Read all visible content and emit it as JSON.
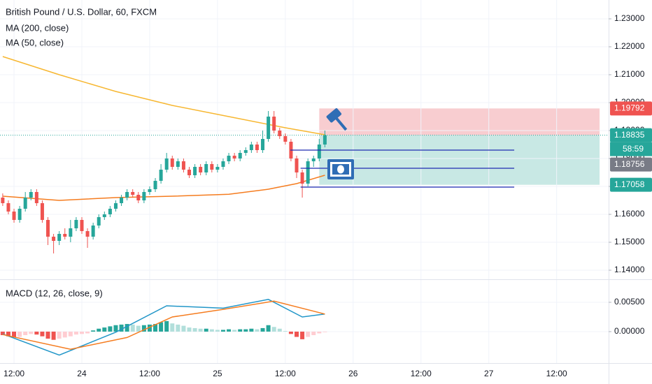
{
  "chart_data": [
    {
      "type": "candlestick",
      "title": "British Pound / U.S. Dollar, 60, FXCM",
      "xlim": [
        -2.48,
        105.2
      ],
      "xticks": [
        {
          "value": 0,
          "label": "12:00"
        },
        {
          "value": 12,
          "label": "24"
        },
        {
          "value": 24,
          "label": "12:00"
        },
        {
          "value": 36,
          "label": "25"
        },
        {
          "value": 48,
          "label": "12:00"
        },
        {
          "value": 60,
          "label": "26"
        },
        {
          "value": 72,
          "label": "12:00"
        },
        {
          "value": 84,
          "label": "27"
        },
        {
          "value": 96,
          "label": "12:00"
        }
      ],
      "ylim": [
        1.13675,
        1.23675
      ],
      "yticks": [
        {
          "value": 1.14,
          "label": "1.14000"
        },
        {
          "value": 1.15,
          "label": "1.15000"
        },
        {
          "value": 1.16,
          "label": "1.16000"
        },
        {
          "value": 1.17,
          "label": "1.17000"
        },
        {
          "value": 1.18,
          "label": "1.18000"
        },
        {
          "value": 1.19,
          "label": "1.19000"
        },
        {
          "value": 1.2,
          "label": "1.20000"
        },
        {
          "value": 1.21,
          "label": "1.21000"
        },
        {
          "value": 1.22,
          "label": "1.22000"
        },
        {
          "value": 1.23,
          "label": "1.23000"
        }
      ],
      "up_color": "#26a69a",
      "down_color": "#ef5350",
      "candles": {
        "x": [
          -2,
          -1,
          0,
          1,
          2,
          3,
          4,
          5,
          6,
          7,
          8,
          9,
          10,
          11,
          12,
          13,
          14,
          15,
          16,
          17,
          18,
          19,
          20,
          21,
          22,
          23,
          24,
          25,
          26,
          27,
          28,
          29,
          30,
          31,
          32,
          33,
          34,
          35,
          36,
          37,
          38,
          39,
          40,
          41,
          42,
          43,
          44,
          45,
          46,
          47,
          48,
          49,
          50,
          51,
          52,
          53,
          54,
          55
        ],
        "ohlc": [
          [
            1.166,
            1.1675,
            1.163,
            1.164
          ],
          [
            1.164,
            1.165,
            1.16,
            1.161
          ],
          [
            1.161,
            1.162,
            1.157,
            1.158
          ],
          [
            1.158,
            1.163,
            1.157,
            1.162
          ],
          [
            1.162,
            1.168,
            1.161,
            1.166
          ],
          [
            1.166,
            1.169,
            1.165,
            1.168
          ],
          [
            1.168,
            1.169,
            1.163,
            1.164
          ],
          [
            1.164,
            1.165,
            1.157,
            1.158
          ],
          [
            1.158,
            1.159,
            1.149,
            1.152
          ],
          [
            1.152,
            1.153,
            1.146,
            1.1505
          ],
          [
            1.1505,
            1.154,
            1.149,
            1.153
          ],
          [
            1.153,
            1.155,
            1.151,
            1.152
          ],
          [
            1.152,
            1.158,
            1.15,
            1.155
          ],
          [
            1.155,
            1.159,
            1.154,
            1.158
          ],
          [
            1.158,
            1.159,
            1.153,
            1.154
          ],
          [
            1.154,
            1.155,
            1.148,
            1.152
          ],
          [
            1.152,
            1.157,
            1.151,
            1.156
          ],
          [
            1.156,
            1.16,
            1.155,
            1.159
          ],
          [
            1.159,
            1.161,
            1.158,
            1.16
          ],
          [
            1.16,
            1.163,
            1.159,
            1.162
          ],
          [
            1.162,
            1.165,
            1.161,
            1.164
          ],
          [
            1.164,
            1.167,
            1.163,
            1.166
          ],
          [
            1.166,
            1.169,
            1.165,
            1.168
          ],
          [
            1.168,
            1.169,
            1.166,
            1.167
          ],
          [
            1.167,
            1.168,
            1.164,
            1.165
          ],
          [
            1.165,
            1.169,
            1.164,
            1.168
          ],
          [
            1.168,
            1.17,
            1.167,
            1.169
          ],
          [
            1.169,
            1.173,
            1.168,
            1.172
          ],
          [
            1.172,
            1.178,
            1.171,
            1.176
          ],
          [
            1.176,
            1.182,
            1.175,
            1.18
          ],
          [
            1.18,
            1.181,
            1.176,
            1.177
          ],
          [
            1.177,
            1.18,
            1.176,
            1.179
          ],
          [
            1.179,
            1.18,
            1.175,
            1.176
          ],
          [
            1.176,
            1.177,
            1.173,
            1.174
          ],
          [
            1.174,
            1.178,
            1.173,
            1.177
          ],
          [
            1.177,
            1.178,
            1.174,
            1.175
          ],
          [
            1.175,
            1.179,
            1.174,
            1.178
          ],
          [
            1.178,
            1.179,
            1.175,
            1.176
          ],
          [
            1.176,
            1.178,
            1.175,
            1.177
          ],
          [
            1.177,
            1.18,
            1.176,
            1.179
          ],
          [
            1.179,
            1.182,
            1.178,
            1.181
          ],
          [
            1.181,
            1.182,
            1.179,
            1.18
          ],
          [
            1.18,
            1.183,
            1.179,
            1.182
          ],
          [
            1.182,
            1.184,
            1.181,
            1.183
          ],
          [
            1.183,
            1.186,
            1.182,
            1.185
          ],
          [
            1.185,
            1.186,
            1.182,
            1.183
          ],
          [
            1.183,
            1.19,
            1.182,
            1.187
          ],
          [
            1.187,
            1.197,
            1.186,
            1.195
          ],
          [
            1.195,
            1.197,
            1.189,
            1.19
          ],
          [
            1.19,
            1.191,
            1.187,
            1.188
          ],
          [
            1.188,
            1.189,
            1.185,
            1.186
          ],
          [
            1.186,
            1.187,
            1.179,
            1.18
          ],
          [
            1.18,
            1.181,
            1.173,
            1.175
          ],
          [
            1.175,
            1.176,
            1.166,
            1.171
          ],
          [
            1.171,
            1.18,
            1.17,
            1.179
          ],
          [
            1.179,
            1.181,
            1.177,
            1.18
          ],
          [
            1.18,
            1.187,
            1.179,
            1.185
          ],
          [
            1.185,
            1.19,
            1.184,
            1.18835
          ]
        ]
      },
      "series": [
        {
          "name": "MA (200, close)",
          "color": "#f7b731",
          "x": [
            -2,
            8,
            18,
            28,
            38,
            48,
            55
          ],
          "values": [
            1.2165,
            1.21,
            1.204,
            1.199,
            1.195,
            1.191,
            1.1885
          ]
        },
        {
          "name": "MA (50, close)",
          "color": "#f57c1f",
          "x": [
            -2,
            8,
            18,
            28,
            38,
            45,
            50,
            55
          ],
          "values": [
            1.1665,
            1.165,
            1.166,
            1.1665,
            1.1672,
            1.169,
            1.171,
            1.174
          ]
        }
      ],
      "position": {
        "x": [
          54,
          103.6
        ],
        "stop": 1.19792,
        "entry": 1.18835,
        "target": 1.17058,
        "loss_color": "#f8cdd0",
        "profit_color": "#c8e8e4"
      },
      "levels": {
        "color": "#1e2bb0",
        "lines": [
          {
            "x": [
              48.9,
              88.5
            ],
            "value": 1.183
          },
          {
            "x": [
              50.7,
              88.5
            ],
            "value": 1.1765
          },
          {
            "x": [
              50.7,
              88.5
            ],
            "value": 1.16975
          }
        ]
      },
      "price_labels": [
        {
          "value": 1.19792,
          "label": "1.19792",
          "color": "#ef5350"
        },
        {
          "value": 1.18835,
          "label": "1.18835",
          "color": "#26a69a",
          "countdown": "58:59"
        },
        {
          "value": 1.18756,
          "label": "1.18756",
          "color": "#787b86"
        },
        {
          "value": 1.17058,
          "label": "1.17058",
          "color": "#26a69a"
        }
      ]
    },
    {
      "type": "macd",
      "title": "MACD (12, 26, close, 9)",
      "ylim": [
        -0.00536,
        0.00833
      ],
      "yticks": [
        {
          "value": 0,
          "label": "0.00000"
        },
        {
          "value": 0.005,
          "label": "0.00500"
        }
      ],
      "histogram": [
        -0.0006,
        -0.0008,
        -0.001,
        -0.0009,
        -0.0006,
        -0.0004,
        -0.0005,
        -0.0008,
        -0.0012,
        -0.0014,
        -0.0012,
        -0.001,
        -0.0008,
        -0.0005,
        -0.0004,
        -0.0003,
        0.0002,
        0.0005,
        0.0007,
        0.0009,
        0.0011,
        0.0012,
        0.0013,
        0.0012,
        0.001,
        0.0011,
        0.0012,
        0.0013,
        0.0016,
        0.0018,
        0.0014,
        0.0012,
        0.001,
        0.0007,
        0.0006,
        0.0005,
        0.0005,
        0.0004,
        0.0003,
        0.0003,
        0.0004,
        0.0003,
        0.0004,
        0.0004,
        0.0005,
        0.0004,
        0.0006,
        0.0011,
        0.0008,
        0.0005,
        0.0001,
        -0.0004,
        -0.0009,
        -0.0013,
        -0.0009,
        -0.0006,
        -0.0003,
        -0.0001
      ],
      "hist_colors": {
        "up_rising": "#26a69a",
        "up_falling": "#b2dfdb",
        "down_falling": "#ef5350",
        "down_rising": "#ffcdd2"
      },
      "series": [
        {
          "color": "#2196c8",
          "x": [
            -2,
            8,
            18,
            27,
            37,
            45,
            51,
            55
          ],
          "values": [
            -0.0004,
            -0.004,
            -0.0001,
            0.0044,
            0.004,
            0.0055,
            0.0025,
            0.003
          ]
        },
        {
          "color": "#f57c1f",
          "x": [
            -2,
            10,
            20,
            28,
            37,
            46,
            55
          ],
          "values": [
            -0.0005,
            -0.003,
            -0.001,
            0.0025,
            0.0038,
            0.0052,
            0.003
          ]
        }
      ]
    }
  ]
}
